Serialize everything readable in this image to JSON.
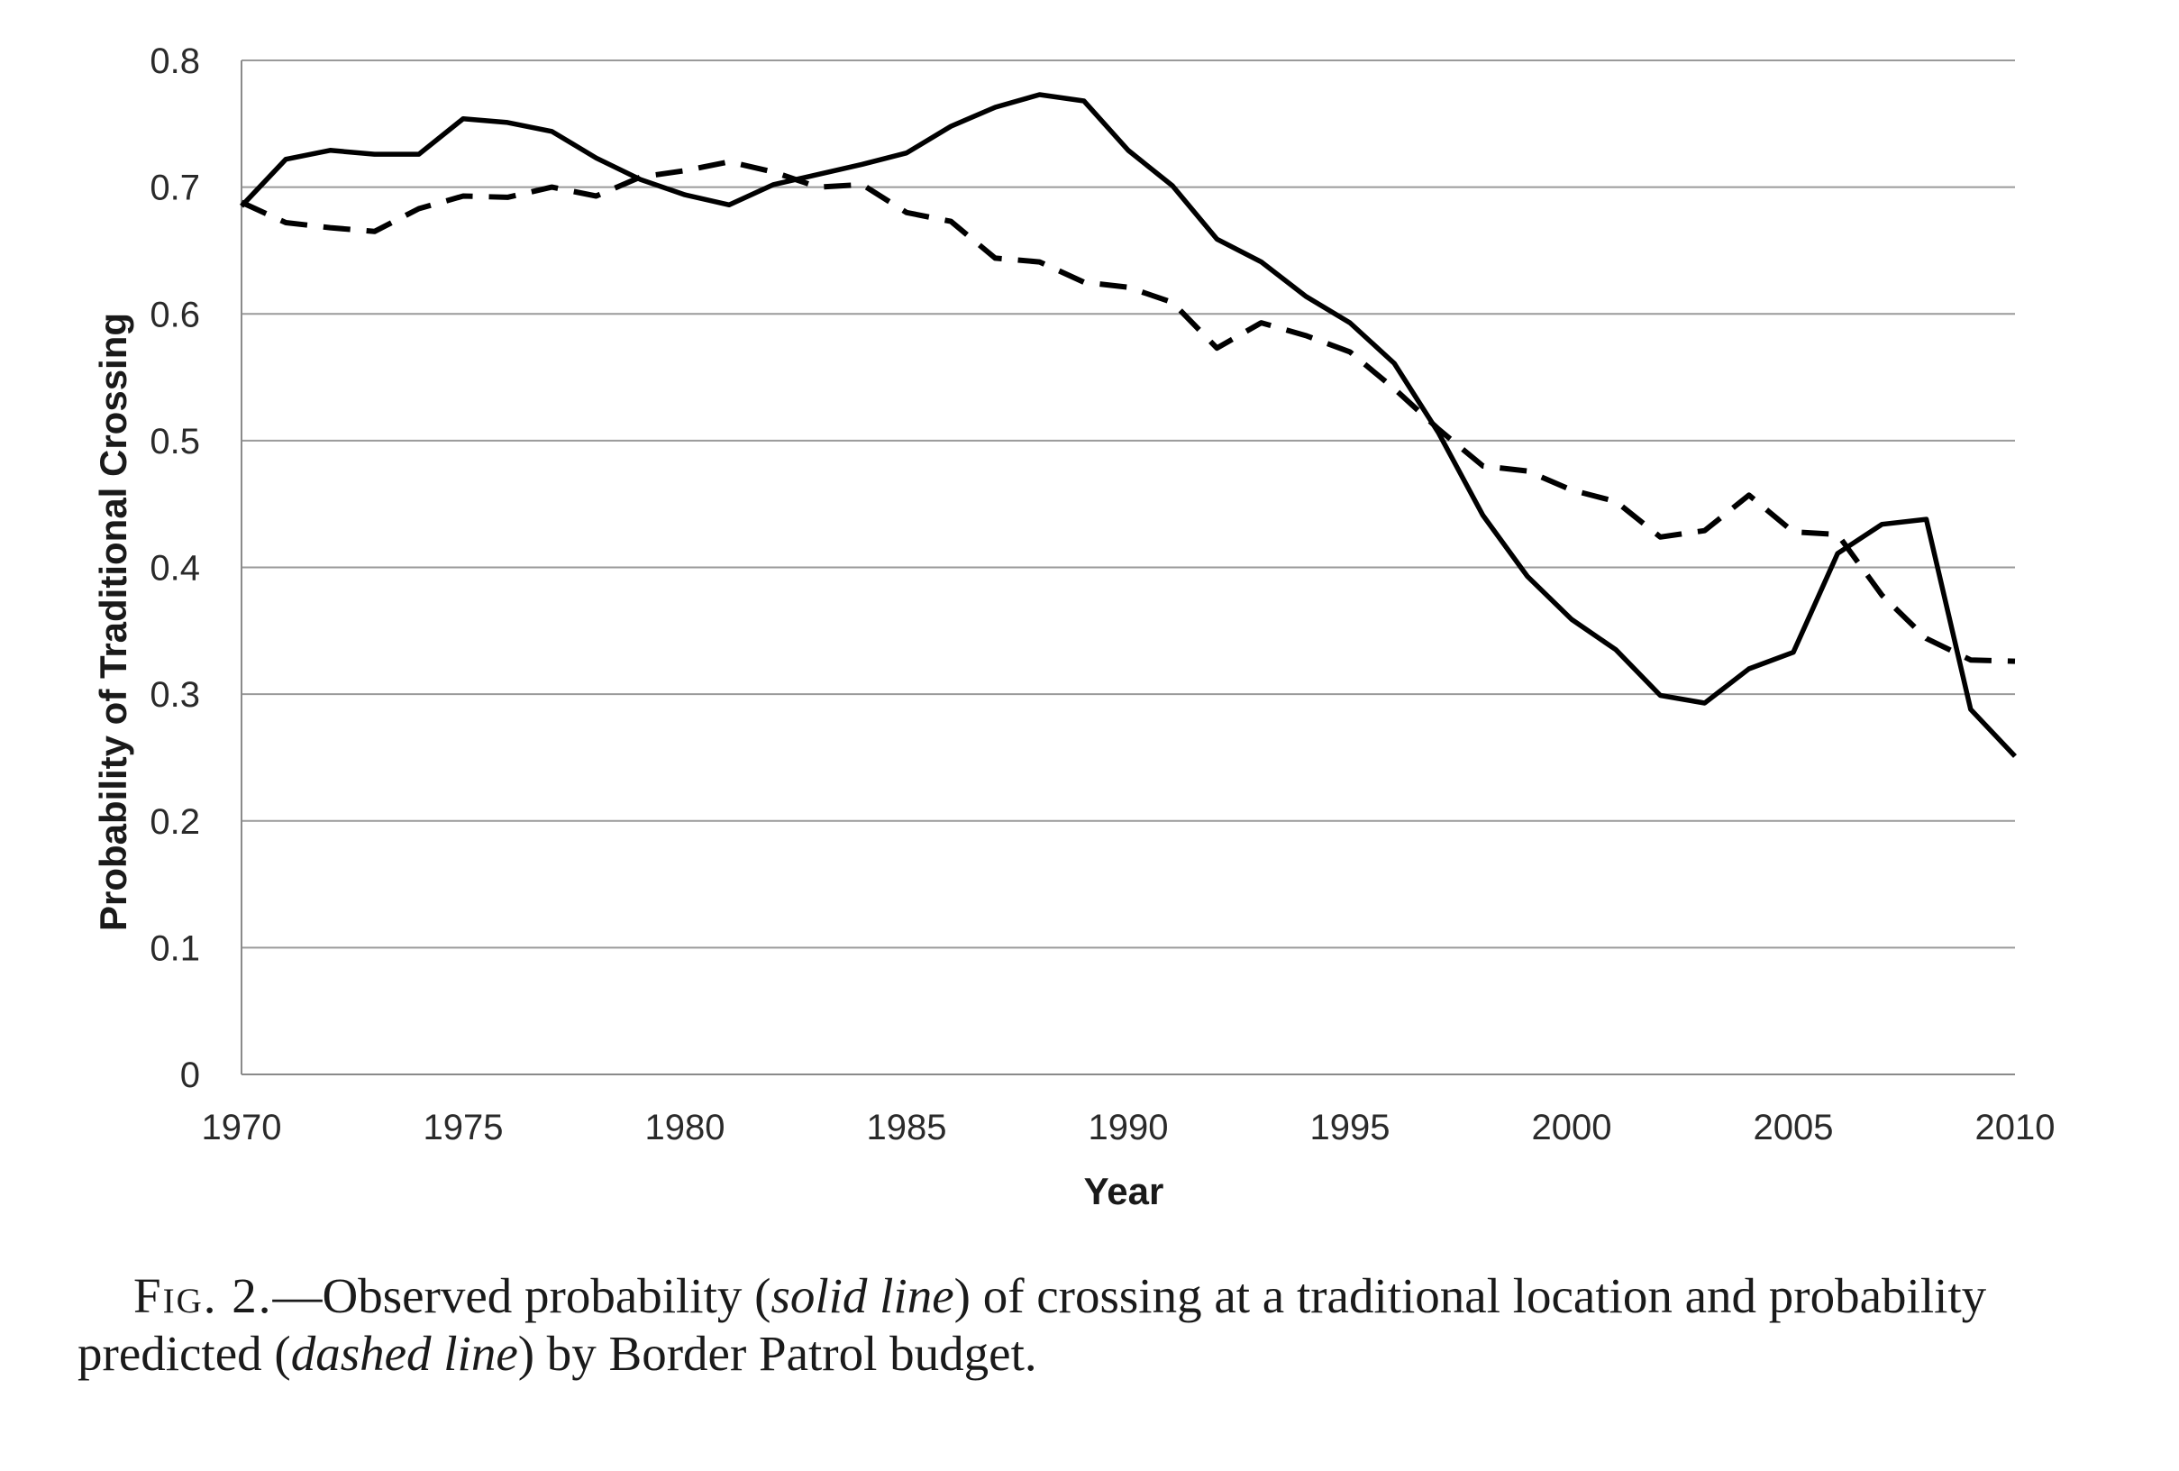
{
  "chart_data": {
    "type": "line",
    "xlabel": "Year",
    "ylabel": "Probability of Traditional Crossing",
    "xlim": [
      1970,
      2010
    ],
    "ylim": [
      0,
      0.8
    ],
    "x_ticks": [
      "1970",
      "1975",
      "1980",
      "1985",
      "1990",
      "1995",
      "2000",
      "2005",
      "2010"
    ],
    "y_ticks": [
      "0",
      "0.1",
      "0.2",
      "0.3",
      "0.4",
      "0.5",
      "0.6",
      "0.7",
      "0.8"
    ],
    "grid": "horizontal",
    "legend": "none",
    "x": [
      1970,
      1971,
      1972,
      1973,
      1974,
      1975,
      1976,
      1977,
      1978,
      1979,
      1980,
      1981,
      1982,
      1983,
      1984,
      1985,
      1986,
      1987,
      1988,
      1989,
      1990,
      1991,
      1992,
      1993,
      1994,
      1995,
      1996,
      1997,
      1998,
      1999,
      2000,
      2001,
      2002,
      2003,
      2004,
      2005,
      2006,
      2007,
      2008,
      2009,
      2010
    ],
    "series": [
      {
        "style": "solid",
        "values": [
          0.685,
          0.722,
          0.729,
          0.726,
          0.726,
          0.754,
          0.751,
          0.744,
          0.723,
          0.706,
          0.694,
          0.686,
          0.702,
          0.71,
          0.718,
          0.727,
          0.748,
          0.763,
          0.773,
          0.768,
          0.729,
          0.701,
          0.659,
          0.641,
          0.614,
          0.593,
          0.561,
          0.506,
          0.441,
          0.393,
          0.359,
          0.335,
          0.299,
          0.293,
          0.32,
          0.333,
          0.411,
          0.434,
          0.438,
          0.288,
          0.251
        ]
      },
      {
        "style": "dashed",
        "values": [
          0.688,
          0.672,
          0.668,
          0.665,
          0.683,
          0.693,
          0.692,
          0.7,
          0.693,
          0.708,
          0.713,
          0.72,
          0.712,
          0.7,
          0.702,
          0.68,
          0.673,
          0.644,
          0.641,
          0.625,
          0.621,
          0.609,
          0.573,
          0.593,
          0.583,
          0.57,
          0.541,
          0.509,
          0.48,
          0.476,
          0.461,
          0.452,
          0.424,
          0.429,
          0.457,
          0.428,
          0.426,
          0.378,
          0.344,
          0.327,
          0.326
        ]
      }
    ]
  },
  "caption": {
    "fig_label": "Fig. 2.",
    "dash": "—",
    "text_1": "Observed probability (",
    "solid_term": "solid line",
    "text_2": ") of crossing at a traditional location and probability predicted (",
    "dashed_term": "dashed line",
    "text_3": ") by Border Patrol budget."
  }
}
